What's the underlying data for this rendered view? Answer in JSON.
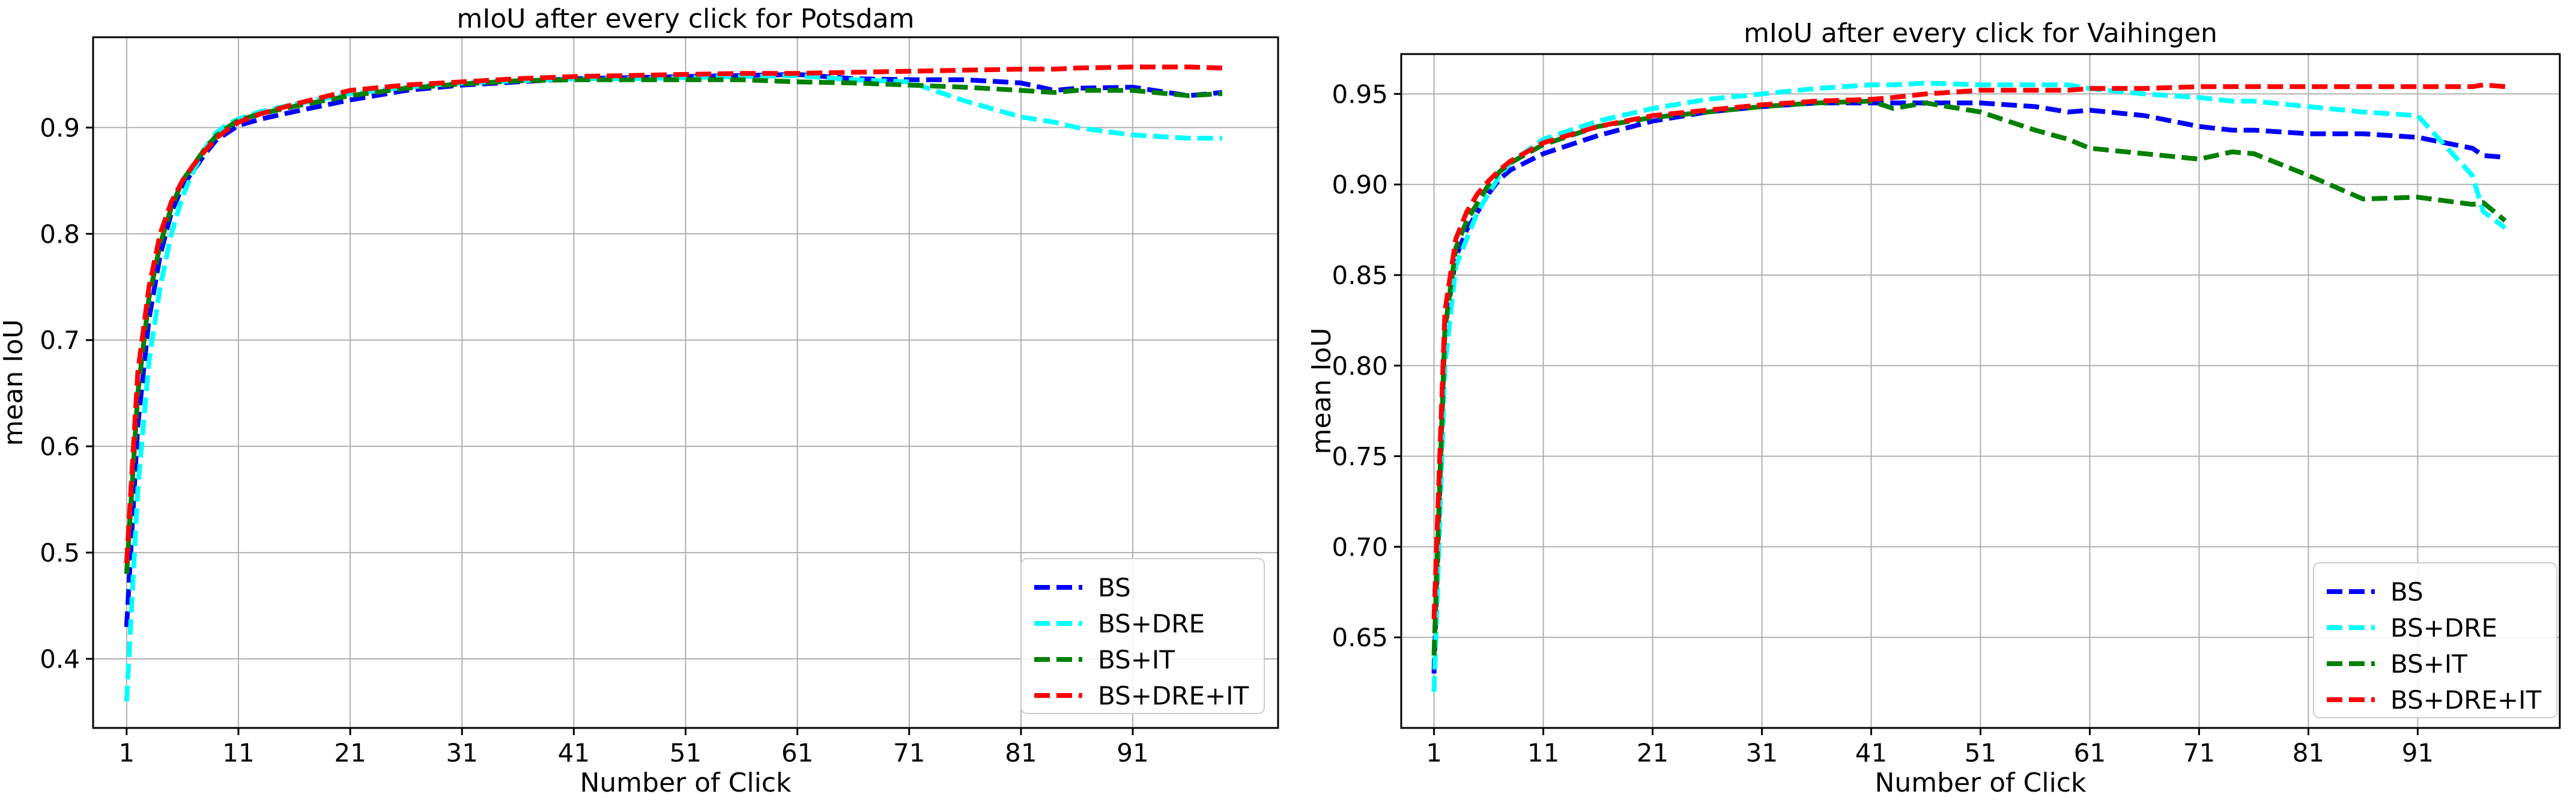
{
  "chart_data": [
    {
      "type": "line",
      "title": "mIoU after every click for Potsdam",
      "xlabel": "Number of Click",
      "ylabel": "mean IoU",
      "xlim": [
        -2,
        104
      ],
      "ylim": [
        0.335,
        0.985
      ],
      "xticks": [
        1,
        11,
        21,
        31,
        41,
        51,
        61,
        71,
        81,
        91
      ],
      "xtick_labels": [
        "1",
        "11",
        "21",
        "31",
        "41",
        "51",
        "61",
        "71",
        "81",
        "91"
      ],
      "yticks": [
        0.4,
        0.5,
        0.6,
        0.7,
        0.8,
        0.9
      ],
      "ytick_labels": [
        "0.4",
        "0.5",
        "0.6",
        "0.7",
        "0.8",
        "0.9"
      ],
      "grid": true,
      "legend_position": "lower-right",
      "x": [
        1,
        2,
        3,
        4,
        5,
        6,
        7,
        8,
        9,
        10,
        11,
        13,
        16,
        21,
        26,
        31,
        36,
        41,
        46,
        51,
        56,
        61,
        66,
        71,
        76,
        81,
        84,
        86,
        91,
        96,
        99
      ],
      "series": [
        {
          "name": "BS",
          "color": "#0000ff",
          "values": [
            0.43,
            0.62,
            0.72,
            0.78,
            0.82,
            0.845,
            0.86,
            0.875,
            0.888,
            0.895,
            0.902,
            0.908,
            0.915,
            0.926,
            0.935,
            0.94,
            0.943,
            0.946,
            0.947,
            0.948,
            0.949,
            0.95,
            0.946,
            0.945,
            0.945,
            0.942,
            0.935,
            0.937,
            0.938,
            0.93,
            0.933
          ]
        },
        {
          "name": "BS+DRE",
          "color": "#00ffff",
          "values": [
            0.36,
            0.56,
            0.68,
            0.75,
            0.8,
            0.835,
            0.86,
            0.88,
            0.895,
            0.903,
            0.908,
            0.915,
            0.922,
            0.932,
            0.938,
            0.942,
            0.944,
            0.946,
            0.946,
            0.947,
            0.948,
            0.949,
            0.945,
            0.943,
            0.925,
            0.91,
            0.905,
            0.9,
            0.893,
            0.89,
            0.89
          ]
        },
        {
          "name": "BS+IT",
          "color": "#008000",
          "values": [
            0.48,
            0.65,
            0.74,
            0.79,
            0.825,
            0.85,
            0.865,
            0.88,
            0.892,
            0.9,
            0.907,
            0.913,
            0.92,
            0.93,
            0.937,
            0.941,
            0.944,
            0.945,
            0.945,
            0.945,
            0.945,
            0.943,
            0.942,
            0.94,
            0.938,
            0.935,
            0.933,
            0.935,
            0.935,
            0.93,
            0.932
          ]
        },
        {
          "name": "BS+DRE+IT",
          "color": "#ff0000",
          "values": [
            0.49,
            0.67,
            0.75,
            0.8,
            0.83,
            0.85,
            0.865,
            0.878,
            0.89,
            0.898,
            0.905,
            0.913,
            0.922,
            0.935,
            0.94,
            0.943,
            0.946,
            0.948,
            0.949,
            0.95,
            0.951,
            0.951,
            0.952,
            0.953,
            0.954,
            0.955,
            0.955,
            0.956,
            0.957,
            0.957,
            0.956
          ]
        }
      ]
    },
    {
      "type": "line",
      "title": "mIoU after every click for Vaihingen",
      "xlabel": "Number of Click",
      "ylabel": "mean IoU",
      "xlim": [
        -2,
        104
      ],
      "ylim": [
        0.6,
        0.972
      ],
      "xticks": [
        1,
        11,
        21,
        31,
        41,
        51,
        61,
        71,
        81,
        91
      ],
      "xtick_labels": [
        "1",
        "11",
        "21",
        "31",
        "41",
        "51",
        "61",
        "71",
        "81",
        "91"
      ],
      "yticks": [
        0.65,
        0.7,
        0.75,
        0.8,
        0.85,
        0.9,
        0.95
      ],
      "ytick_labels": [
        "0.65",
        "0.70",
        "0.75",
        "0.80",
        "0.85",
        "0.90",
        "0.95"
      ],
      "grid": true,
      "legend_position": "lower-right",
      "x": [
        1,
        2,
        3,
        4,
        5,
        6,
        7,
        8,
        11,
        16,
        21,
        26,
        31,
        36,
        41,
        43,
        46,
        51,
        56,
        59,
        61,
        66,
        71,
        74,
        76,
        81,
        86,
        91,
        96,
        97,
        99
      ],
      "series": [
        {
          "name": "BS",
          "color": "#0000ff",
          "values": [
            0.63,
            0.82,
            0.86,
            0.875,
            0.885,
            0.895,
            0.903,
            0.908,
            0.917,
            0.927,
            0.935,
            0.94,
            0.943,
            0.945,
            0.945,
            0.945,
            0.945,
            0.945,
            0.943,
            0.94,
            0.941,
            0.938,
            0.932,
            0.93,
            0.93,
            0.928,
            0.928,
            0.926,
            0.92,
            0.916,
            0.915
          ]
        },
        {
          "name": "BS+DRE",
          "color": "#00ffff",
          "values": [
            0.62,
            0.8,
            0.855,
            0.87,
            0.885,
            0.895,
            0.905,
            0.912,
            0.925,
            0.935,
            0.942,
            0.947,
            0.95,
            0.953,
            0.955,
            0.955,
            0.956,
            0.955,
            0.955,
            0.955,
            0.953,
            0.95,
            0.948,
            0.946,
            0.946,
            0.943,
            0.94,
            0.938,
            0.905,
            0.885,
            0.876
          ]
        },
        {
          "name": "BS+IT",
          "color": "#008000",
          "values": [
            0.64,
            0.82,
            0.865,
            0.88,
            0.89,
            0.9,
            0.907,
            0.912,
            0.922,
            0.932,
            0.937,
            0.94,
            0.943,
            0.945,
            0.946,
            0.942,
            0.945,
            0.94,
            0.93,
            0.925,
            0.92,
            0.917,
            0.914,
            0.918,
            0.917,
            0.905,
            0.892,
            0.893,
            0.889,
            0.89,
            0.88
          ]
        },
        {
          "name": "BS+DRE+IT",
          "color": "#ff0000",
          "values": [
            0.66,
            0.83,
            0.87,
            0.885,
            0.895,
            0.902,
            0.908,
            0.913,
            0.923,
            0.932,
            0.938,
            0.941,
            0.944,
            0.946,
            0.947,
            0.948,
            0.95,
            0.952,
            0.952,
            0.952,
            0.953,
            0.953,
            0.954,
            0.954,
            0.954,
            0.954,
            0.954,
            0.954,
            0.954,
            0.955,
            0.954
          ]
        }
      ]
    }
  ]
}
